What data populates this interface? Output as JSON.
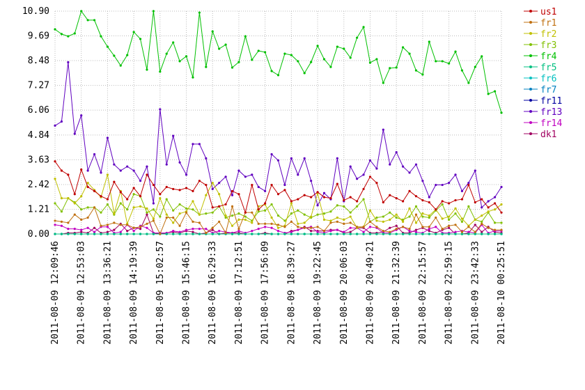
{
  "chart_data": {
    "type": "line",
    "categories": [
      "2011-08-09 12:09:46",
      null,
      null,
      null,
      "2011-08-09 12:53:03",
      null,
      null,
      null,
      "2011-08-09 13:36:21",
      null,
      null,
      null,
      "2011-08-09 14:19:39",
      null,
      null,
      null,
      "2011-08-09 15:02:57",
      null,
      null,
      null,
      "2011-08-09 15:46:15",
      null,
      null,
      null,
      "2011-08-09 16:29:33",
      null,
      null,
      null,
      "2011-08-09 17:12:51",
      null,
      null,
      null,
      "2011-08-09 17:56:09",
      null,
      null,
      null,
      "2011-08-09 18:39:27",
      null,
      null,
      null,
      "2011-08-09 19:22:45",
      null,
      null,
      null,
      "2011-08-09 20:06:03",
      null,
      null,
      null,
      "2011-08-09 20:49:21",
      null,
      null,
      null,
      "2011-08-09 21:32:39",
      null,
      null,
      null,
      "2011-08-09 22:15:57",
      null,
      null,
      null,
      "2011-08-09 22:59:15",
      null,
      null,
      null,
      "2011-08-09 23:42:33",
      null,
      null,
      null,
      "2011-08-10 00:25:51"
    ],
    "ylim": [
      0,
      10.9
    ],
    "yticks": [
      {
        "value": 0,
        "label": "0.00"
      },
      1.21,
      2.42,
      3.63,
      4.84,
      6.06,
      7.27,
      8.48,
      9.69,
      {
        "value": 10.9,
        "label": "10.90"
      }
    ],
    "grid": true,
    "legend": "right",
    "series": [
      {
        "name": "us1",
        "color": "#c00000",
        "values": [
          3.55,
          3.1,
          2.9,
          1.95,
          3.15,
          2.3,
          2.1,
          1.85,
          1.7,
          2.55,
          2.05,
          1.7,
          2.25,
          1.85,
          2.9,
          2.4,
          1.95,
          2.3,
          2.2,
          2.15,
          2.25,
          2.1,
          2.6,
          2.4,
          1.3,
          1.35,
          1.45,
          2.1,
          1.95,
          1.05,
          2.4,
          1.2,
          1.5,
          2.4,
          1.95,
          2.15,
          1.6,
          1.7,
          1.9,
          1.8,
          2.05,
          1.8,
          1.75,
          2.45,
          1.65,
          1.8,
          1.6,
          2.2,
          2.8,
          2.5,
          1.55,
          1.9,
          1.75,
          1.6,
          2.1,
          1.85,
          1.65,
          1.55,
          1.2,
          1.6,
          1.5,
          1.65,
          1.7,
          2.4,
          1.55,
          1.7,
          1.3,
          1.5,
          1.05
        ]
      },
      {
        "name": "fr1",
        "color": "#c07010",
        "values": [
          0.65,
          0.6,
          0.55,
          0.95,
          0.7,
          0.8,
          1.3,
          0.4,
          0.45,
          0.55,
          0.45,
          0.45,
          0.3,
          0.35,
          0.5,
          0.65,
          0.0,
          0.8,
          0.8,
          0.4,
          1.05,
          0.6,
          0.55,
          0.05,
          0.3,
          0.6,
          0.05,
          1.35,
          0.25,
          1.05,
          1.05,
          0.5,
          0.5,
          0.5,
          0.45,
          0.35,
          0.6,
          0.35,
          0.3,
          0.3,
          0.35,
          0.15,
          0.55,
          0.6,
          0.5,
          0.55,
          0.35,
          0.35,
          0.6,
          0.35,
          0.15,
          0.1,
          0.25,
          0.35,
          0.25,
          0.95,
          0.35,
          0.35,
          0.8,
          0.25,
          0.4,
          0.45,
          0.1,
          0.35,
          0.1,
          0.5,
          0.3,
          0.2,
          0.2
        ]
      },
      {
        "name": "fr2",
        "color": "#c0c000",
        "values": [
          2.7,
          1.75,
          1.75,
          1.5,
          1.85,
          2.5,
          2.15,
          1.8,
          2.9,
          1.0,
          2.1,
          0.5,
          1.3,
          1.35,
          1.25,
          0.75,
          1.75,
          0.95,
          0.55,
          1.0,
          1.1,
          1.6,
          0.95,
          1.9,
          2.5,
          1.95,
          0.9,
          0.4,
          0.7,
          0.7,
          0.55,
          1.35,
          1.45,
          0.8,
          0.3,
          0.4,
          1.5,
          0.5,
          0.55,
          0.85,
          2.0,
          0.7,
          0.65,
          0.8,
          0.7,
          0.85,
          0.3,
          0.35,
          1.15,
          0.65,
          0.6,
          0.7,
          0.95,
          0.6,
          1.25,
          0.55,
          1.0,
          0.9,
          1.2,
          0.75,
          0.85,
          1.25,
          0.75,
          0.4,
          0.7,
          0.9,
          1.1,
          1.2,
          1.45
        ]
      },
      {
        "name": "fr3",
        "color": "#80c000",
        "values": [
          1.5,
          1.1,
          1.75,
          1.55,
          1.2,
          1.3,
          1.3,
          1.05,
          1.45,
          0.95,
          1.5,
          1.2,
          1.95,
          1.85,
          1.05,
          1.2,
          0.85,
          1.7,
          1.15,
          1.45,
          1.25,
          1.2,
          0.95,
          1.0,
          1.05,
          1.35,
          0.8,
          0.9,
          1.0,
          0.85,
          0.65,
          1.1,
          1.15,
          1.45,
          0.9,
          0.65,
          1.0,
          1.15,
          0.95,
          0.8,
          0.95,
          1.0,
          1.1,
          1.4,
          1.35,
          1.05,
          1.35,
          1.7,
          0.6,
          0.8,
          0.85,
          1.05,
          0.8,
          0.7,
          0.85,
          1.35,
          0.85,
          0.8,
          1.15,
          1.45,
          0.7,
          1.0,
          0.6,
          1.35,
          0.7,
          0.6,
          1.05,
          0.55,
          0.55
        ]
      },
      {
        "name": "fr4",
        "color": "#00c000",
        "values": [
          10.01,
          9.78,
          9.67,
          9.81,
          10.9,
          10.46,
          10.46,
          9.67,
          9.16,
          8.72,
          8.24,
          8.75,
          9.88,
          9.54,
          8.04,
          10.9,
          7.94,
          8.82,
          9.37,
          8.45,
          8.69,
          7.66,
          10.83,
          8.17,
          9.91,
          9.06,
          9.26,
          8.14,
          8.41,
          9.67,
          8.52,
          8.96,
          8.89,
          7.97,
          7.77,
          8.82,
          8.75,
          8.45,
          7.87,
          8.41,
          9.2,
          8.55,
          8.17,
          9.16,
          9.06,
          8.62,
          9.6,
          10.12,
          8.38,
          8.55,
          7.39,
          8.11,
          8.14,
          9.13,
          8.82,
          8.0,
          7.8,
          9.4,
          8.45,
          8.45,
          8.34,
          8.92,
          8.0,
          7.39,
          8.17,
          8.69,
          6.85,
          6.98,
          5.93
        ]
      },
      {
        "name": "fr5",
        "color": "#00c080",
        "values": [
          0,
          0,
          0,
          0,
          0,
          0,
          0,
          0,
          0,
          0,
          0,
          0,
          0,
          0,
          0,
          0,
          0,
          0,
          0,
          0,
          0,
          0,
          0,
          0,
          0,
          0,
          0,
          0,
          0,
          0,
          0,
          0,
          0,
          0,
          0,
          0,
          0,
          0,
          0,
          0,
          0,
          0,
          0,
          0,
          0,
          0,
          0,
          0,
          0,
          0,
          0,
          0,
          0,
          0,
          0,
          0,
          0,
          0,
          0,
          0,
          0,
          0,
          0,
          0,
          0,
          0,
          0,
          0,
          0
        ]
      },
      {
        "name": "fr6",
        "color": "#00c0c0",
        "values": [
          0,
          0,
          0,
          0,
          0,
          0,
          0,
          0,
          0,
          0,
          0,
          0,
          0,
          0,
          0,
          0,
          0,
          0,
          0,
          0,
          0,
          0,
          0,
          0,
          0,
          0,
          0,
          0,
          0,
          0,
          0,
          0,
          0,
          0,
          0,
          0,
          0,
          0,
          0,
          0,
          0,
          0,
          0,
          0,
          0,
          0,
          0,
          0,
          0,
          0,
          0,
          0,
          0,
          0,
          0,
          0,
          0,
          0,
          0,
          0,
          0,
          0,
          0,
          0,
          0,
          0,
          0,
          0,
          0
        ]
      },
      {
        "name": "fr7",
        "color": "#0080c0",
        "values": [
          0,
          0,
          0,
          0,
          0,
          0,
          0,
          0,
          0,
          0,
          0,
          0,
          0,
          0,
          0,
          0,
          0,
          0,
          0,
          0,
          0,
          0,
          0,
          0,
          0,
          0,
          0,
          0,
          0,
          0,
          0,
          0,
          0,
          0,
          0,
          0,
          0,
          0,
          0,
          0,
          0,
          0,
          0,
          0,
          0,
          0,
          0,
          0,
          0,
          0,
          0,
          0,
          0,
          0,
          0,
          0,
          0,
          0,
          0,
          0,
          0,
          0,
          0,
          0,
          0,
          0,
          0,
          0,
          0
        ]
      },
      {
        "name": "fr11",
        "color": "#0000a0",
        "values": [
          0,
          0,
          0,
          0,
          0,
          0,
          0,
          0,
          0,
          0,
          0,
          0,
          0,
          0,
          0,
          0,
          0,
          0,
          0,
          0,
          0,
          0,
          0,
          0,
          0,
          0,
          0,
          0,
          0,
          0,
          0,
          0,
          0,
          0,
          0,
          0,
          0,
          0,
          0,
          0,
          0,
          0,
          0,
          0,
          0,
          0,
          0,
          0,
          0,
          0,
          0,
          0,
          0,
          0,
          0,
          0,
          0,
          0,
          0,
          0,
          0,
          0,
          0,
          0,
          0,
          0,
          0,
          0,
          0
        ]
      },
      {
        "name": "fr13",
        "color": "#6000c0",
        "values": [
          5.3,
          5.5,
          8.4,
          4.9,
          5.8,
          3.1,
          3.9,
          3.0,
          4.7,
          3.4,
          3.1,
          3.3,
          3.1,
          2.6,
          3.3,
          1.5,
          6.1,
          3.4,
          4.8,
          3.5,
          2.9,
          4.4,
          4.4,
          3.7,
          2.2,
          2.5,
          2.8,
          1.9,
          3.1,
          2.8,
          2.9,
          2.3,
          2.1,
          3.9,
          3.6,
          2.4,
          3.7,
          2.9,
          3.7,
          2.6,
          1.4,
          2.0,
          1.7,
          3.7,
          1.6,
          3.3,
          2.7,
          2.9,
          3.6,
          3.2,
          5.1,
          3.4,
          4.0,
          3.3,
          3.0,
          3.4,
          2.6,
          1.8,
          2.4,
          2.4,
          2.5,
          2.9,
          2.1,
          2.5,
          3.1,
          1.3,
          1.6,
          1.8,
          2.3
        ]
      },
      {
        "name": "fr14",
        "color": "#c000c0",
        "values": [
          0.45,
          0.4,
          0.25,
          0.25,
          0.2,
          0.3,
          0.1,
          0.35,
          0.35,
          0.05,
          0.1,
          0.45,
          0.15,
          0.4,
          0.3,
          0.05,
          0.05,
          0.05,
          0.15,
          0.1,
          0.2,
          0.25,
          0.25,
          0.25,
          0.05,
          0.15,
          0.1,
          0.05,
          0.15,
          0.05,
          0.15,
          0.25,
          0.35,
          0.3,
          0.15,
          0.05,
          0.1,
          0.2,
          0.3,
          0.35,
          0.1,
          0.05,
          0.15,
          0.2,
          0.1,
          0.3,
          0.3,
          0.1,
          0.35,
          0.3,
          0.05,
          0.05,
          0.2,
          0.35,
          0.15,
          0.1,
          0.05,
          0.25,
          0.35,
          0.05,
          0.05,
          0.1,
          0.15,
          0.1,
          0.05,
          0.45,
          0.05,
          0.15,
          0.15
        ]
      },
      {
        "name": "dk1",
        "color": "#a00060",
        "values": [
          0.0,
          0.0,
          0.05,
          0.05,
          0.1,
          0.05,
          0.3,
          0.05,
          0.1,
          0.2,
          0.5,
          0.15,
          0.3,
          0.25,
          0.95,
          0.05,
          0.0,
          0.05,
          0.1,
          0.05,
          0.15,
          0.1,
          0.0,
          0.05,
          0.2,
          0.0,
          0.05,
          0.05,
          0.05,
          0.0,
          0.0,
          0.0,
          0.05,
          0.0,
          0.0,
          0.0,
          0.15,
          0.2,
          0.35,
          0.15,
          0.15,
          0.15,
          0.2,
          0.2,
          0.05,
          0.1,
          0.3,
          0.3,
          0.05,
          0.05,
          0.1,
          0.3,
          0.4,
          0.05,
          0.05,
          0.2,
          0.3,
          0.15,
          0.05,
          0.2,
          0.3,
          0.0,
          0.0,
          0.05,
          0.45,
          0.1,
          0.35,
          0.1,
          0.05
        ]
      }
    ]
  }
}
